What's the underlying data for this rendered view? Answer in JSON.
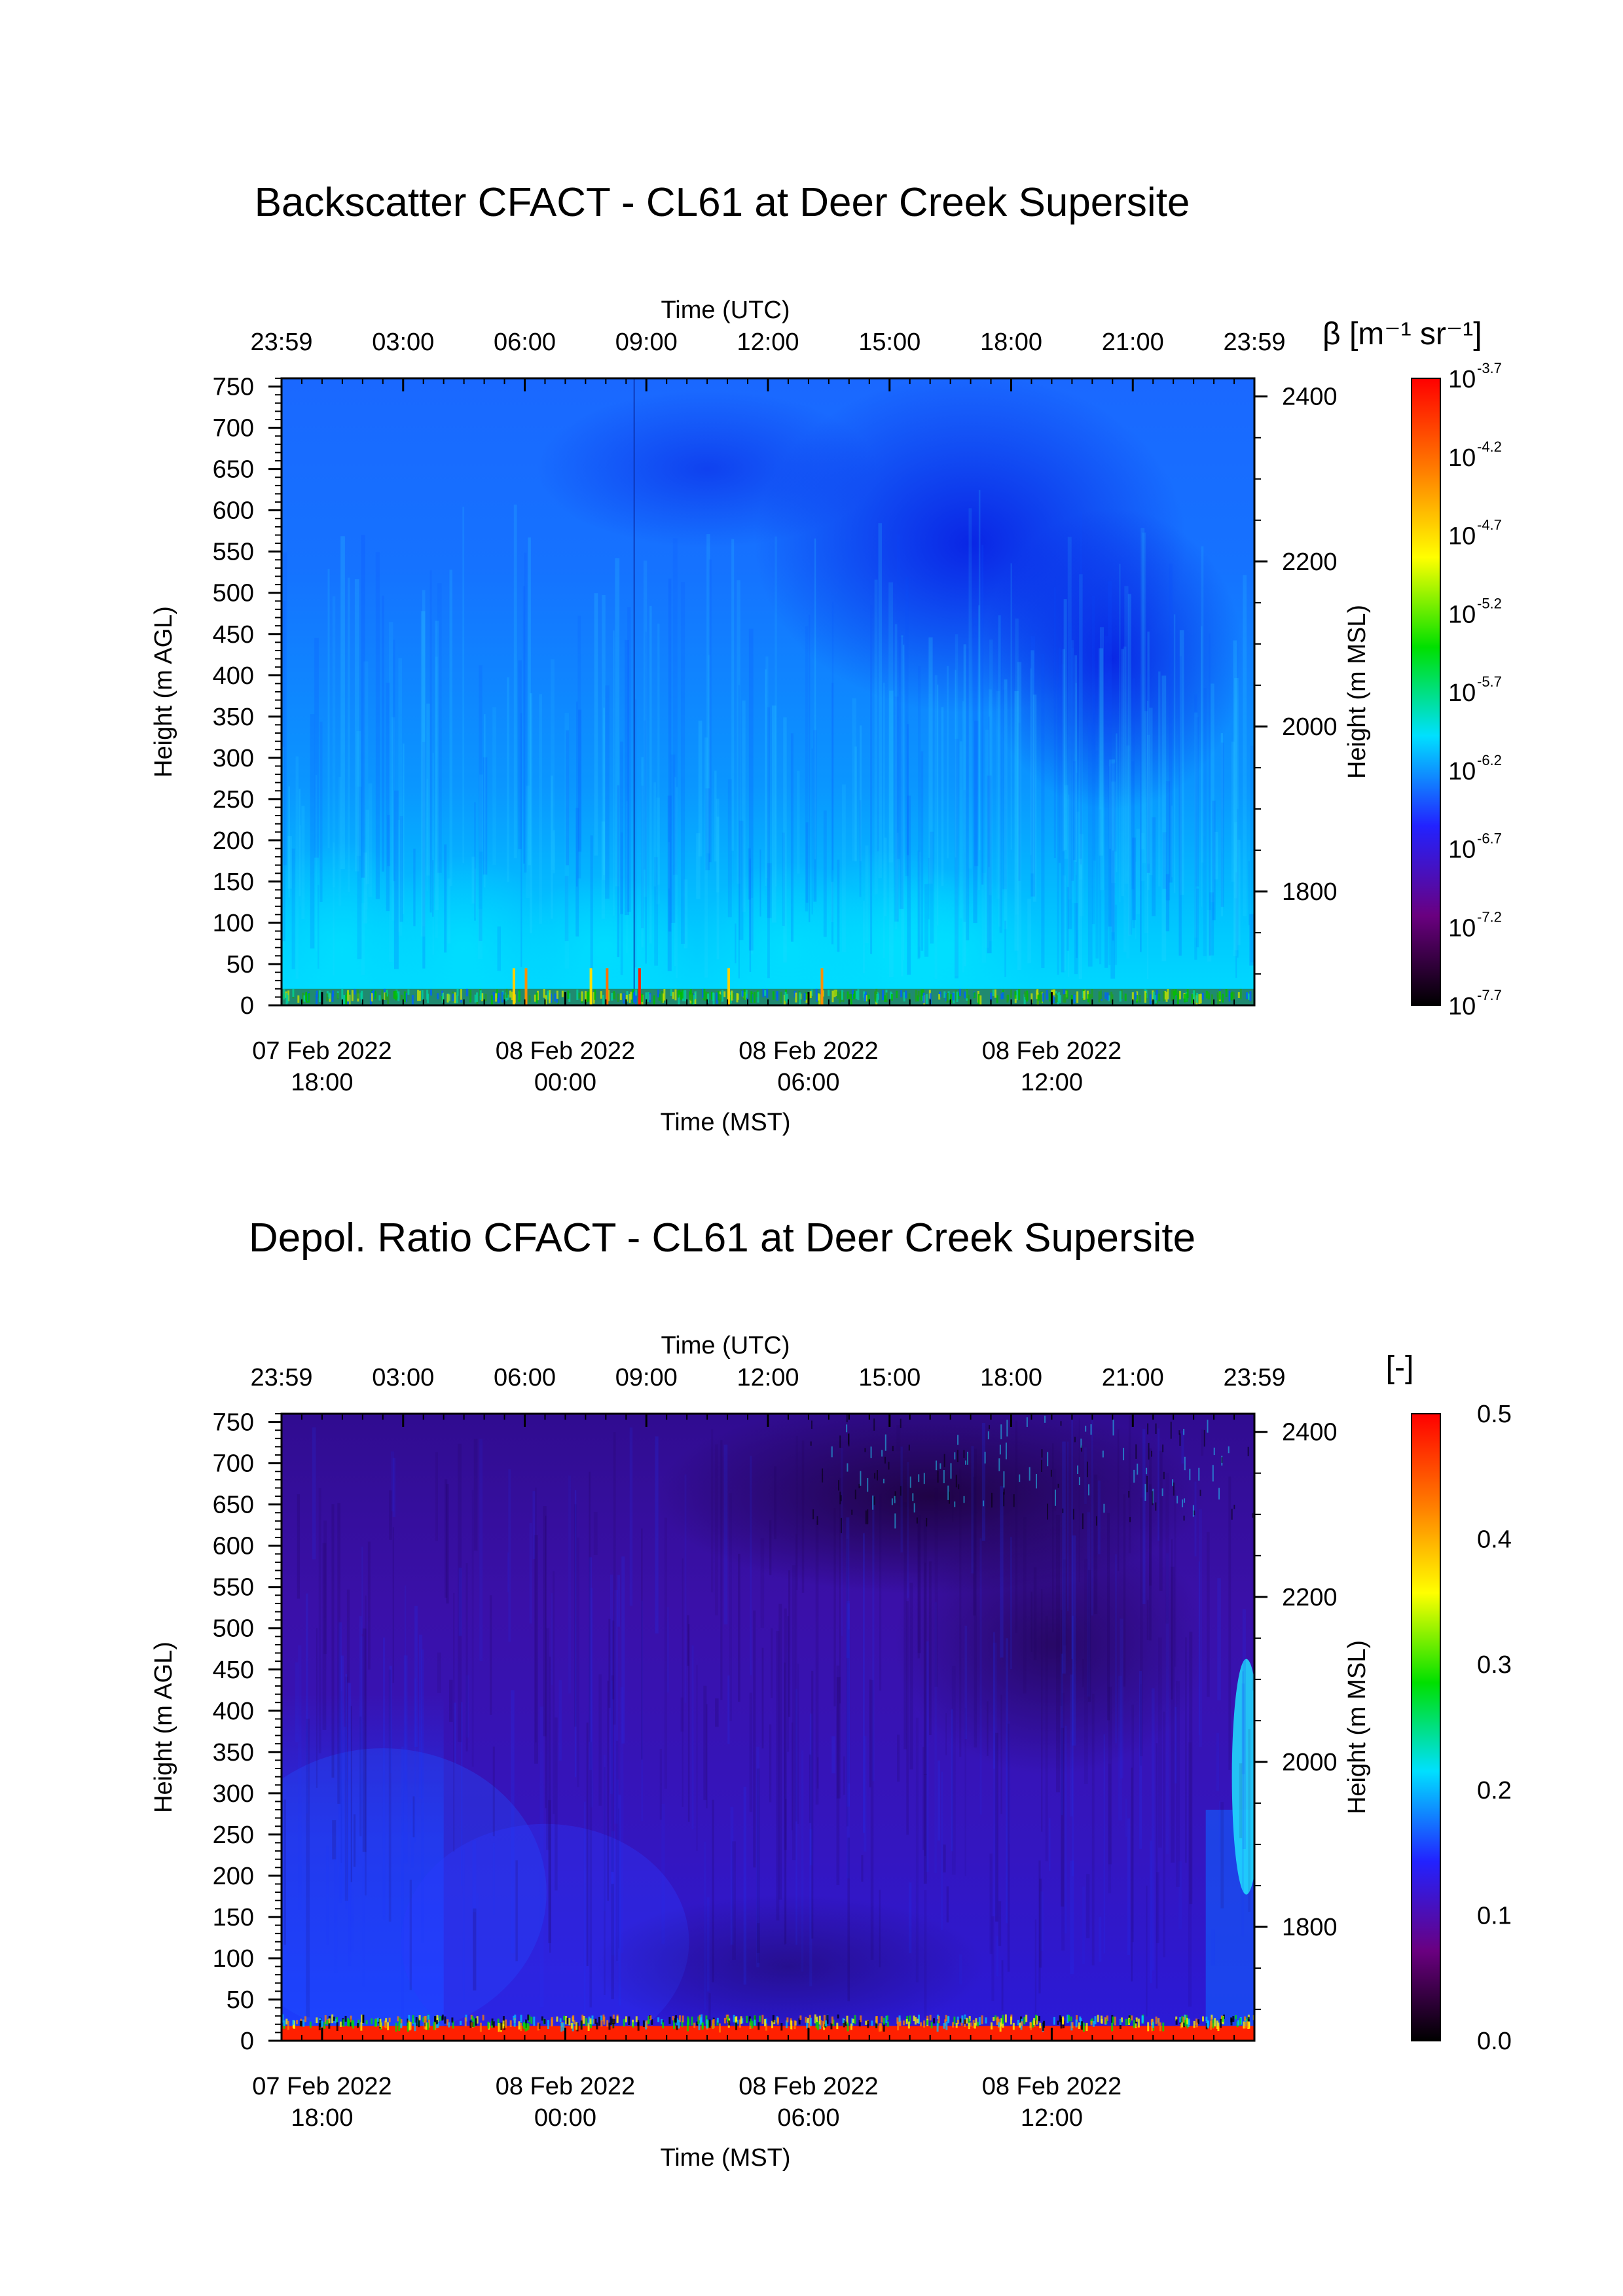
{
  "chart_data": [
    {
      "type": "heatmap",
      "title": "Backscatter CFACT - CL61 at Deer Creek Supersite",
      "xlabel_top": "Time (UTC)",
      "xlabel_bottom": "Time (MST)",
      "ylabel_left": "Height (m AGL)",
      "ylabel_right": "Height (m MSL)",
      "top_tick_labels": [
        "23:59",
        "03:00",
        "06:00",
        "09:00",
        "12:00",
        "15:00",
        "18:00",
        "21:00",
        "23:59"
      ],
      "top_tick_hours": [
        0,
        3,
        6,
        9,
        12,
        15,
        18,
        21,
        24
      ],
      "bottom_ticks": [
        {
          "date": "07 Feb 2022",
          "time": "18:00",
          "utc_hours": 1
        },
        {
          "date": "08 Feb 2022",
          "time": "00:00",
          "utc_hours": 7
        },
        {
          "date": "08 Feb 2022",
          "time": "06:00",
          "utc_hours": 13
        },
        {
          "date": "08 Feb 2022",
          "time": "12:00",
          "utc_hours": 19
        }
      ],
      "xlim_utc_hours": [
        0,
        24
      ],
      "left_ticks": [
        750,
        700,
        650,
        600,
        550,
        500,
        450,
        400,
        350,
        300,
        250,
        200,
        150,
        100,
        50,
        0
      ],
      "ylim_agl": [
        0,
        760
      ],
      "right_ticks": [
        2400,
        2200,
        2000,
        1800
      ],
      "ylim_msl": [
        1662,
        2422
      ],
      "colorbar": {
        "label": "β [m⁻¹ sr⁻¹]",
        "scale": "log10",
        "base": "10",
        "exponents": [
          "-3.7",
          "-4.2",
          "-4.7",
          "-5.2",
          "-5.7",
          "-6.2",
          "-6.7",
          "-7.2",
          "-7.7"
        ],
        "range_log10": [
          -7.7,
          -3.7
        ],
        "colormap": [
          "#000000",
          "#6a0080",
          "#2222ff",
          "#00e0ff",
          "#00e000",
          "#ffff00",
          "#ff7a00",
          "#ff0000"
        ]
      },
      "dominant_colors": {
        "near_surface_layer": "#00c8ff",
        "aloft": "#1a6cff",
        "dark_clear_air": "#1030f0"
      }
    },
    {
      "type": "heatmap",
      "title": "Depol. Ratio CFACT - CL61 at Deer Creek Supersite",
      "xlabel_top": "Time (UTC)",
      "xlabel_bottom": "Time (MST)",
      "ylabel_left": "Height (m AGL)",
      "ylabel_right": "Height (m MSL)",
      "top_tick_labels": [
        "23:59",
        "03:00",
        "06:00",
        "09:00",
        "12:00",
        "15:00",
        "18:00",
        "21:00",
        "23:59"
      ],
      "top_tick_hours": [
        0,
        3,
        6,
        9,
        12,
        15,
        18,
        21,
        24
      ],
      "bottom_ticks": [
        {
          "date": "07 Feb 2022",
          "time": "18:00",
          "utc_hours": 1
        },
        {
          "date": "08 Feb 2022",
          "time": "00:00",
          "utc_hours": 7
        },
        {
          "date": "08 Feb 2022",
          "time": "06:00",
          "utc_hours": 13
        },
        {
          "date": "08 Feb 2022",
          "time": "12:00",
          "utc_hours": 19
        }
      ],
      "xlim_utc_hours": [
        0,
        24
      ],
      "left_ticks": [
        750,
        700,
        650,
        600,
        550,
        500,
        450,
        400,
        350,
        300,
        250,
        200,
        150,
        100,
        50,
        0
      ],
      "ylim_agl": [
        0,
        760
      ],
      "right_ticks": [
        2400,
        2200,
        2000,
        1800
      ],
      "ylim_msl": [
        1662,
        2422
      ],
      "colorbar": {
        "label": "[-]",
        "scale": "linear",
        "tick_labels": [
          "0.5",
          "0.4",
          "0.3",
          "0.2",
          "0.1",
          "0.0"
        ],
        "range": [
          0.0,
          0.5
        ],
        "colormap": [
          "#000000",
          "#6a0080",
          "#2222ff",
          "#00e0ff",
          "#00e000",
          "#ffff00",
          "#ff7a00",
          "#ff0000"
        ]
      },
      "dominant_colors": {
        "aloft": "#3a10b0",
        "low_level": "#1a3cff",
        "surface_layer": "#ff2000"
      }
    }
  ]
}
